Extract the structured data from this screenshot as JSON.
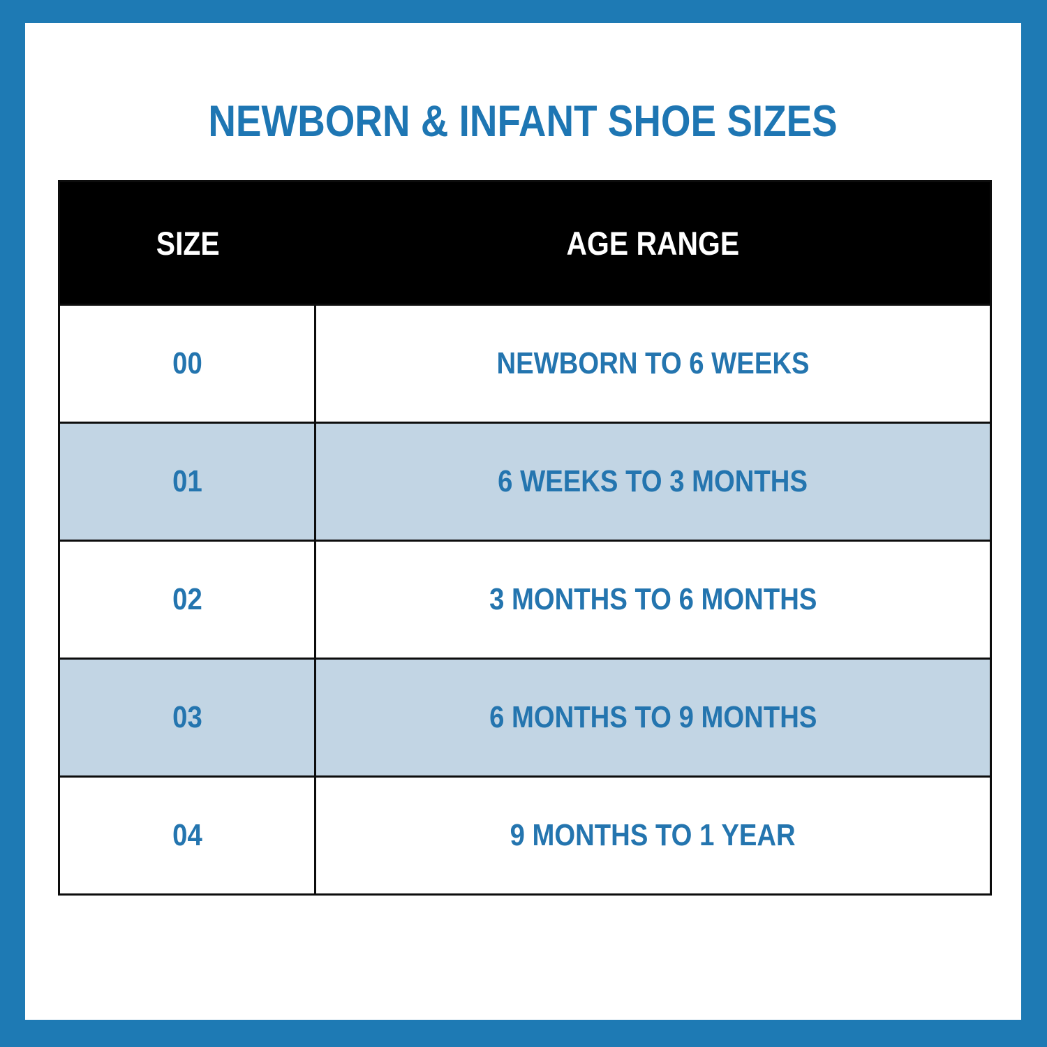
{
  "page": {
    "title": "NEWBORN & INFANT SHOE SIZES"
  },
  "table": {
    "headers": [
      "SIZE",
      "AGE RANGE"
    ],
    "rows": [
      {
        "size": "00",
        "age_range": "NEWBORN TO 6 WEEKS"
      },
      {
        "size": "01",
        "age_range": "6 WEEKS TO 3 MONTHS"
      },
      {
        "size": "02",
        "age_range": "3 MONTHS TO 6 MONTHS"
      },
      {
        "size": "03",
        "age_range": "6 MONTHS TO 9 MONTHS"
      },
      {
        "size": "04",
        "age_range": "9 MONTHS TO 1 YEAR"
      }
    ]
  },
  "colors": {
    "frame_blue": "#1e7ab4",
    "panel_white": "#ffffff",
    "header_bg": "#000000",
    "header_text": "#ffffff",
    "row_alt_blue": "#c2d5e4",
    "text_blue": "#2475af",
    "title_blue": "#1e76b3",
    "table_border": "#0d0d0d"
  },
  "chart_data": {
    "type": "table",
    "title": "NEWBORN & INFANT SHOE SIZES",
    "columns": [
      "SIZE",
      "AGE RANGE"
    ],
    "rows": [
      [
        "00",
        "NEWBORN TO 6 WEEKS"
      ],
      [
        "01",
        "6 WEEKS TO 3 MONTHS"
      ],
      [
        "02",
        "3 MONTHS TO 6 MONTHS"
      ],
      [
        "03",
        "6 MONTHS TO 9 MONTHS"
      ],
      [
        "04",
        "9 MONTHS TO 1 YEAR"
      ]
    ],
    "layout_hints": {
      "header_style": "black background, white bold text",
      "alternating_rows": "white / light blue",
      "text_alignment": "center"
    }
  }
}
